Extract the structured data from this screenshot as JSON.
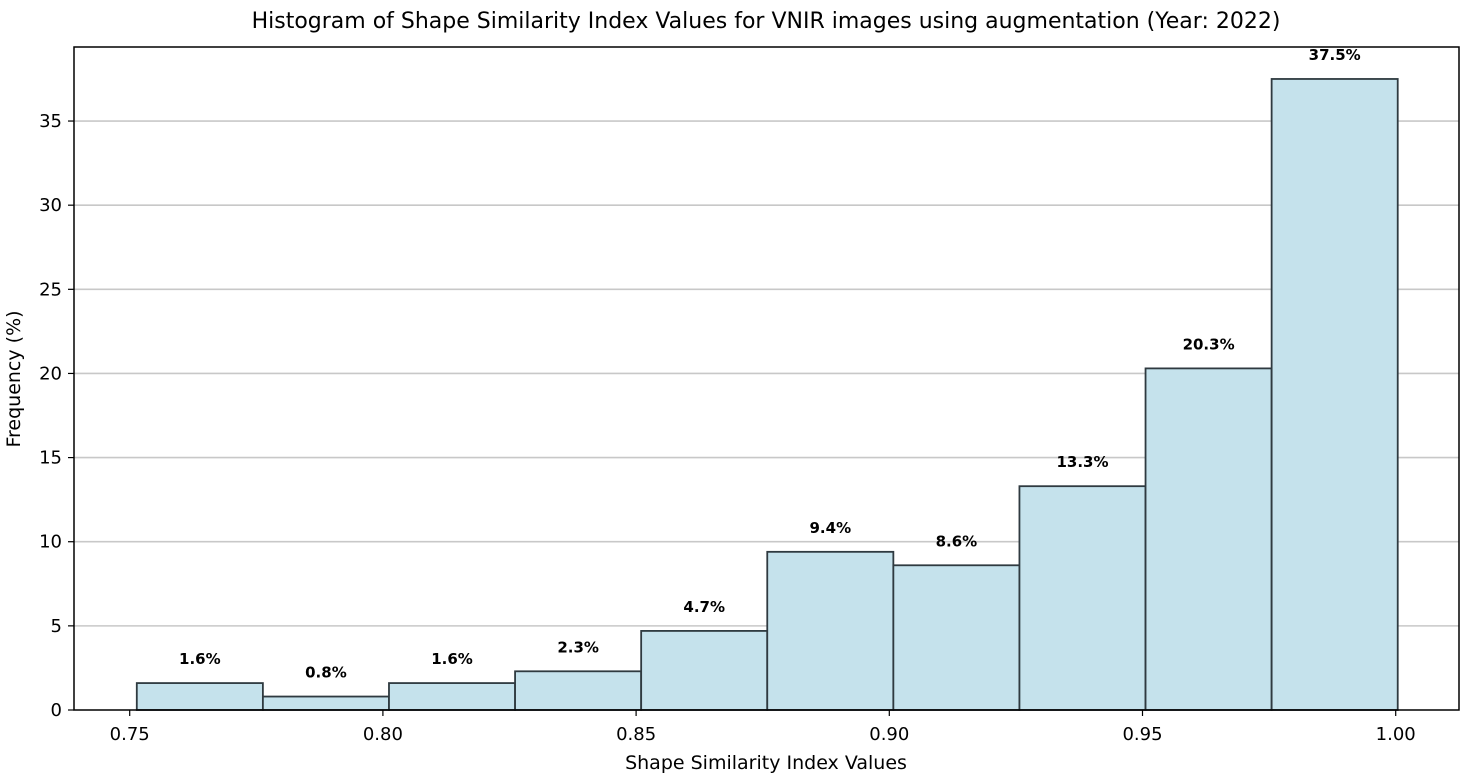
{
  "chart_data": {
    "type": "bar",
    "title": "Histogram of Shape Similarity Index Values for VNIR images using augmentation (Year: 2022)",
    "xlabel": "Shape Similarity Index Values",
    "ylabel": "Frequency (%)",
    "xlim": [
      0.739,
      1.0125
    ],
    "ylim": [
      0,
      39.4
    ],
    "x_ticks": [
      "0.75",
      "0.80",
      "0.85",
      "0.90",
      "0.95",
      "1.00"
    ],
    "y_ticks": [
      "0",
      "5",
      "10",
      "15",
      "20",
      "25",
      "30",
      "35"
    ],
    "bins": [
      {
        "start": 0.7514,
        "end": 0.7763,
        "value": 1.6,
        "label": "1.6%"
      },
      {
        "start": 0.7763,
        "end": 0.8012,
        "value": 0.8,
        "label": "0.8%"
      },
      {
        "start": 0.8012,
        "end": 0.8261,
        "value": 1.6,
        "label": "1.6%"
      },
      {
        "start": 0.8261,
        "end": 0.851,
        "value": 2.3,
        "label": "2.3%"
      },
      {
        "start": 0.851,
        "end": 0.8759,
        "value": 4.7,
        "label": "4.7%"
      },
      {
        "start": 0.8759,
        "end": 0.9008,
        "value": 9.4,
        "label": "9.4%"
      },
      {
        "start": 0.9008,
        "end": 0.9257,
        "value": 8.6,
        "label": "8.6%"
      },
      {
        "start": 0.9257,
        "end": 0.9506,
        "value": 13.3,
        "label": "13.3%"
      },
      {
        "start": 0.9506,
        "end": 0.9755,
        "value": 20.3,
        "label": "20.3%"
      },
      {
        "start": 0.9755,
        "end": 1.0004,
        "value": 37.5,
        "label": "37.5%"
      }
    ],
    "grid": "y",
    "colors": {
      "bar_fill": "#c5e2ec",
      "bar_edge": "#2f3a40",
      "grid": "#c8c8c8",
      "axis": "#000000"
    }
  }
}
